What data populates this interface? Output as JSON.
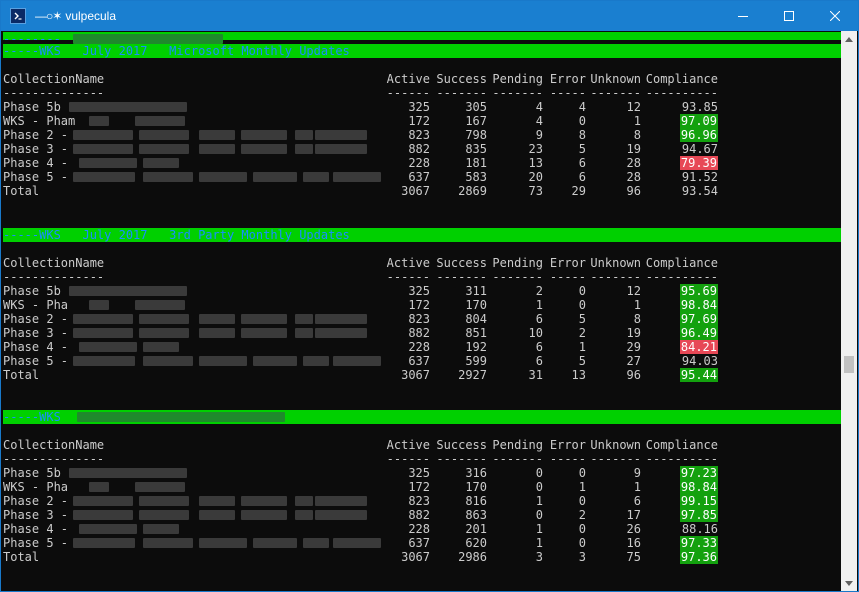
{
  "window": {
    "title": "vulpecula",
    "title_glyph": "—○✶",
    "controls": {
      "minimize": "minimize",
      "maximize": "maximize",
      "close": "close"
    }
  },
  "terminal": {
    "banner_top_prefix": "--------",
    "report_headers": [
      {
        "prefix": "-----",
        "label": "WKS   July 2017   Microsoft Monthly Updates",
        "suffix": ""
      },
      {
        "prefix": "-----",
        "label": "WKS   July 2017   3rd Party Monthly Updates",
        "suffix": ""
      },
      {
        "prefix": "-----",
        "label": "WKS",
        "suffix": ""
      }
    ],
    "columns": [
      "CollectionName",
      "Active",
      "Success",
      "Pending",
      "Error",
      "Unknown",
      "Compliance"
    ],
    "underline": "--------------",
    "underline_cols": [
      "------",
      "-------",
      "-------",
      "-----",
      "-------",
      "----------"
    ],
    "tables": [
      {
        "rows": [
          {
            "name": "Phase 5b",
            "active": "325",
            "success": "305",
            "pending": "4",
            "error": "4",
            "unknown": "12",
            "compliance": "93.85",
            "status": "none"
          },
          {
            "name": "WKS - Pham",
            "active": "172",
            "success": "167",
            "pending": "4",
            "error": "0",
            "unknown": "1",
            "compliance": "97.09",
            "status": "good"
          },
          {
            "name": "Phase 2 -",
            "active": "823",
            "success": "798",
            "pending": "9",
            "error": "8",
            "unknown": "8",
            "compliance": "96.96",
            "status": "good"
          },
          {
            "name": "Phase 3 -",
            "active": "882",
            "success": "835",
            "pending": "23",
            "error": "5",
            "unknown": "19",
            "compliance": "94.67",
            "status": "none"
          },
          {
            "name": "Phase 4 -",
            "active": "228",
            "success": "181",
            "pending": "13",
            "error": "6",
            "unknown": "28",
            "compliance": "79.39",
            "status": "bad"
          },
          {
            "name": "Phase 5 -",
            "active": "637",
            "success": "583",
            "pending": "20",
            "error": "6",
            "unknown": "28",
            "compliance": "91.52",
            "status": "none"
          },
          {
            "name": "Total",
            "active": "3067",
            "success": "2869",
            "pending": "73",
            "error": "29",
            "unknown": "96",
            "compliance": "93.54",
            "status": "none"
          }
        ]
      },
      {
        "rows": [
          {
            "name": "Phase 5b",
            "active": "325",
            "success": "311",
            "pending": "2",
            "error": "0",
            "unknown": "12",
            "compliance": "95.69",
            "status": "good"
          },
          {
            "name": "WKS - Pha",
            "active": "172",
            "success": "170",
            "pending": "1",
            "error": "0",
            "unknown": "1",
            "compliance": "98.84",
            "status": "good"
          },
          {
            "name": "Phase 2 -",
            "active": "823",
            "success": "804",
            "pending": "6",
            "error": "5",
            "unknown": "8",
            "compliance": "97.69",
            "status": "good"
          },
          {
            "name": "Phase 3 -",
            "active": "882",
            "success": "851",
            "pending": "10",
            "error": "2",
            "unknown": "19",
            "compliance": "96.49",
            "status": "good"
          },
          {
            "name": "Phase 4 -",
            "active": "228",
            "success": "192",
            "pending": "6",
            "error": "1",
            "unknown": "29",
            "compliance": "84.21",
            "status": "bad"
          },
          {
            "name": "Phase 5 -",
            "active": "637",
            "success": "599",
            "pending": "6",
            "error": "5",
            "unknown": "27",
            "compliance": "94.03",
            "status": "none"
          },
          {
            "name": "Total",
            "active": "3067",
            "success": "2927",
            "pending": "31",
            "error": "13",
            "unknown": "96",
            "compliance": "95.44",
            "status": "good"
          }
        ]
      },
      {
        "rows": [
          {
            "name": "Phase 5b",
            "active": "325",
            "success": "316",
            "pending": "0",
            "error": "0",
            "unknown": "9",
            "compliance": "97.23",
            "status": "good"
          },
          {
            "name": "WKS - Pha",
            "active": "172",
            "success": "170",
            "pending": "0",
            "error": "1",
            "unknown": "1",
            "compliance": "98.84",
            "status": "good"
          },
          {
            "name": "Phase 2 -",
            "active": "823",
            "success": "816",
            "pending": "1",
            "error": "0",
            "unknown": "6",
            "compliance": "99.15",
            "status": "good"
          },
          {
            "name": "Phase 3 -",
            "active": "882",
            "success": "863",
            "pending": "0",
            "error": "2",
            "unknown": "17",
            "compliance": "97.85",
            "status": "good"
          },
          {
            "name": "Phase 4 -",
            "active": "228",
            "success": "201",
            "pending": "1",
            "error": "0",
            "unknown": "26",
            "compliance": "88.16",
            "status": "none"
          },
          {
            "name": "Phase 5 -",
            "active": "637",
            "success": "620",
            "pending": "1",
            "error": "0",
            "unknown": "16",
            "compliance": "97.33",
            "status": "good"
          },
          {
            "name": "Total",
            "active": "3067",
            "success": "2986",
            "pending": "3",
            "error": "3",
            "unknown": "75",
            "compliance": "97.36",
            "status": "good"
          }
        ]
      }
    ]
  },
  "colors": {
    "titlebar": "#1a7fd0",
    "console_bg": "#0c0c0c",
    "console_fg": "#cccccc",
    "banner_bg": "#00d000",
    "banner_fg": "#1a8cff",
    "good_bg": "#13a10e",
    "bad_bg": "#e74856"
  }
}
